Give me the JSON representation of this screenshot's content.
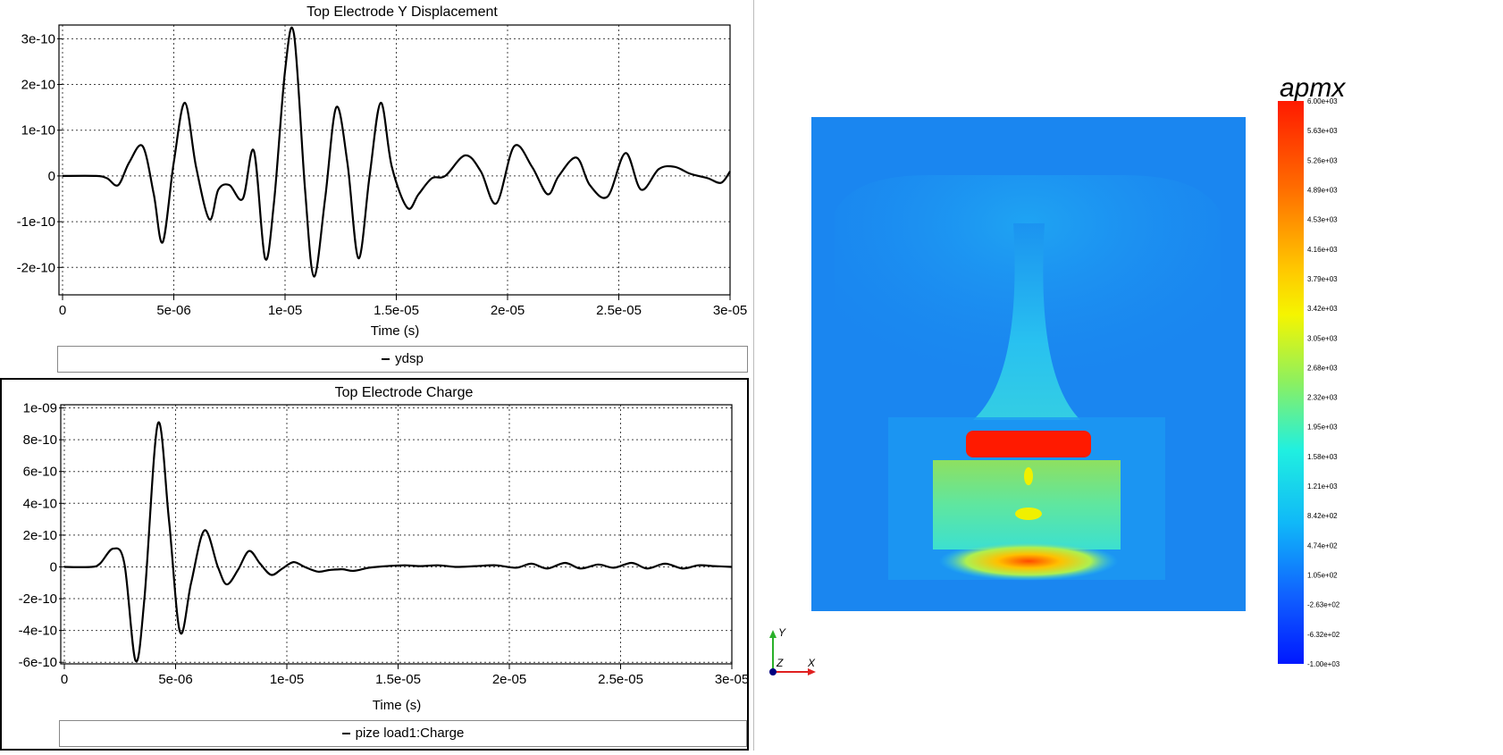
{
  "charts": {
    "top": {
      "title": "Top Electrode Y Displacement",
      "xlabel": "Time (s)",
      "legend": "ydsp",
      "xticks": [
        "0",
        "5e-06",
        "1e-05",
        "1.5e-05",
        "2e-05",
        "2.5e-05",
        "3e-05"
      ],
      "yticks": [
        "3e-10",
        "2e-10",
        "1e-10",
        "0",
        "-1e-10",
        "-2e-10"
      ]
    },
    "bottom": {
      "title": "Top Electrode Charge",
      "xlabel": "Time (s)",
      "legend": "pize load1:Charge",
      "xticks": [
        "0",
        "5e-06",
        "1e-05",
        "1.5e-05",
        "2e-05",
        "2.5e-05",
        "3e-05"
      ],
      "yticks": [
        "1e-09",
        "8e-10",
        "6e-10",
        "4e-10",
        "2e-10",
        "0",
        "-2e-10",
        "-4e-10",
        "-6e-10"
      ]
    }
  },
  "chart_data": [
    {
      "type": "line",
      "title": "Top Electrode Y Displacement",
      "xlabel": "Time (s)",
      "ylabel": "",
      "xlim": [
        0,
        3e-05
      ],
      "ylim": [
        -2.6e-10,
        3.3e-10
      ],
      "grid": true,
      "legend_position": "bottom",
      "series": [
        {
          "name": "ydsp",
          "color": "#000000",
          "x": [
            0,
            1.5e-06,
            2e-06,
            2.5e-06,
            3e-06,
            3.6e-06,
            4.1e-06,
            4.5e-06,
            5e-06,
            5.5e-06,
            6e-06,
            6.6e-06,
            7e-06,
            7.5e-06,
            8.1e-06,
            8.6e-06,
            9.1e-06,
            9.5e-06,
            1e-05,
            1.04e-05,
            1.09e-05,
            1.13e-05,
            1.18e-05,
            1.23e-05,
            1.28e-05,
            1.33e-05,
            1.38e-05,
            1.43e-05,
            1.48e-05,
            1.55e-05,
            1.6e-05,
            1.66e-05,
            1.72e-05,
            1.81e-05,
            1.88e-05,
            1.95e-05,
            2.03e-05,
            2.11e-05,
            2.18e-05,
            2.23e-05,
            2.31e-05,
            2.37e-05,
            2.45e-05,
            2.53e-05,
            2.6e-05,
            2.68e-05,
            2.75e-05,
            2.82e-05,
            2.9e-05,
            2.96e-05,
            3e-05
          ],
          "y": [
            0,
            0,
            -5e-12,
            -2e-11,
            3e-11,
            6.5e-11,
            -4e-11,
            -1.45e-10,
            3e-11,
            1.6e-10,
            2e-11,
            -9.5e-11,
            -3e-11,
            -2e-11,
            -5e-11,
            5.5e-11,
            -1.8e-10,
            -6e-11,
            2.3e-10,
            3.1e-10,
            -3e-11,
            -2.2e-10,
            -5e-11,
            1.5e-10,
            3e-11,
            -1.8e-10,
            0.0,
            1.6e-10,
            2e-11,
            -7e-11,
            -4e-11,
            -5e-12,
            0.0,
            4.5e-11,
            1e-11,
            -6e-11,
            6.5e-11,
            2e-11,
            -4e-11,
            0.0,
            4e-11,
            -2e-11,
            -4.5e-11,
            5e-11,
            -3e-11,
            1.5e-11,
            2e-11,
            5e-12,
            -5e-12,
            -1.5e-11,
            1e-11
          ]
        }
      ]
    },
    {
      "type": "line",
      "title": "Top Electrode Charge",
      "xlabel": "Time (s)",
      "ylabel": "",
      "xlim": [
        0,
        3e-05
      ],
      "ylim": [
        -6.1e-10,
        1.02e-09
      ],
      "grid": true,
      "legend_position": "bottom",
      "series": [
        {
          "name": "pize load1:Charge",
          "color": "#000000",
          "x": [
            0,
            1.2e-06,
            1.6e-06,
            2.2e-06,
            2.7e-06,
            3.2e-06,
            3.6e-06,
            4.2e-06,
            4.7e-06,
            5.2e-06,
            5.7e-06,
            6.3e-06,
            6.9e-06,
            7.3e-06,
            7.8e-06,
            8.3e-06,
            8.8e-06,
            9.3e-06,
            9.8e-06,
            1.03e-05,
            1.08e-05,
            1.14e-05,
            1.19e-05,
            1.25e-05,
            1.3e-05,
            1.37e-05,
            1.45e-05,
            1.53e-05,
            1.6e-05,
            1.68e-05,
            1.76e-05,
            1.85e-05,
            1.94e-05,
            2.03e-05,
            2.1e-05,
            2.17e-05,
            2.25e-05,
            2.32e-05,
            2.4e-05,
            2.47e-05,
            2.55e-05,
            2.62e-05,
            2.7e-05,
            2.78e-05,
            2.85e-05,
            2.92e-05,
            3e-05
          ],
          "y": [
            0,
            0,
            2e-11,
            1.15e-10,
            2e-11,
            -5.9e-10,
            -2e-10,
            9e-10,
            3e-10,
            -4.1e-10,
            -1e-10,
            2.3e-10,
            0.0,
            -1.1e-10,
            -2e-11,
            1e-10,
            2e-11,
            -5e-11,
            -1e-11,
            3e-11,
            0.0,
            -3e-11,
            -2e-11,
            -1.5e-11,
            -2.5e-11,
            -5e-12,
            5e-12,
            1e-11,
            5e-12,
            1e-11,
            0.0,
            5e-12,
            1e-11,
            -5e-12,
            2e-11,
            -1e-11,
            2.5e-11,
            -1e-11,
            1.5e-11,
            -5e-12,
            2.5e-11,
            -1e-11,
            2e-11,
            -1e-11,
            1e-11,
            5e-12,
            0.0
          ]
        }
      ]
    }
  ],
  "render": {
    "title": "apmx",
    "colorbar_labels": [
      "6.00e+03",
      "5.63e+03",
      "5.26e+03",
      "4.89e+03",
      "4.53e+03",
      "4.16e+03",
      "3.79e+03",
      "3.42e+03",
      "3.05e+03",
      "2.68e+03",
      "2.32e+03",
      "1.95e+03",
      "1.58e+03",
      "1.21e+03",
      "8.42e+02",
      "4.74e+02",
      "1.05e+02",
      "-2.63e+02",
      "-6.32e+02",
      "-1.00e+03"
    ],
    "axes_labels": {
      "y": "Y",
      "z": "Z",
      "x": "X"
    },
    "colors": {
      "background": "#1a86f0",
      "max": "#ff1a00",
      "min": "#0022ff"
    }
  }
}
